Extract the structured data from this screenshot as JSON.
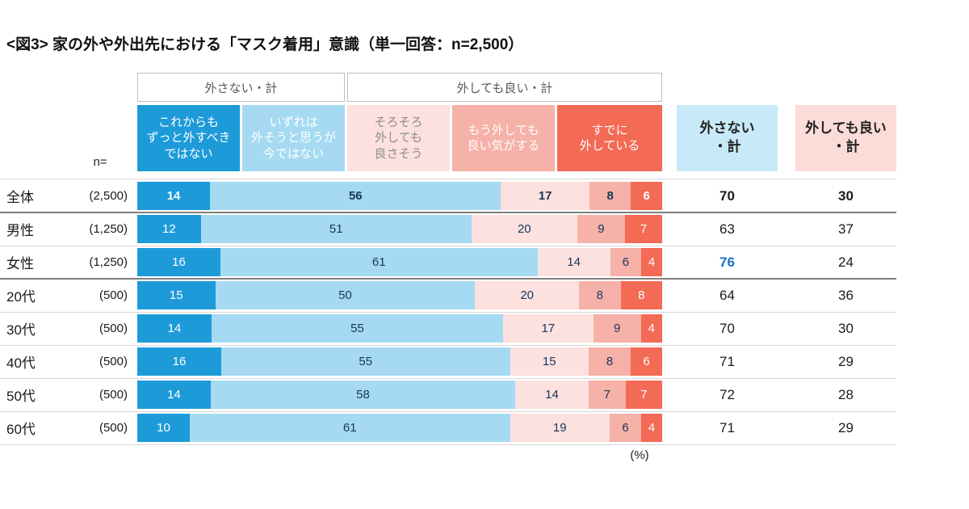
{
  "chart_data": {
    "type": "bar",
    "variant": "horizontal-stacked-100-percent",
    "title": "<図3> 家の外や外出先における「マスク着用」意識（単一回答：n=2,500）",
    "n_label": "n=",
    "unit_label": "(%)",
    "legend_position": "top",
    "x_range": [
      0,
      100
    ],
    "group_headers": [
      "外さない・計",
      "外しても良い・計"
    ],
    "summary_headers": [
      "外さない\n・計",
      "外しても良い\n・計"
    ],
    "summary_header_colors": [
      "#c8e9f8",
      "#fcdcd8"
    ],
    "highlight_color": "#1472c8",
    "series": [
      {
        "label": "これからも\nずっと外すべき\nではない",
        "color": "#1d9bd9",
        "label_text_color": "#ffffff",
        "value_text_color": "#ffffff"
      },
      {
        "label": "いずれは\n外そうと思うが\n今ではない",
        "color": "#a5daf2",
        "label_text_color": "#ffffff",
        "value_text_color": "#17375e"
      },
      {
        "label": "そろそろ\n外しても\n良さそう",
        "color": "#fce1de",
        "label_text_color": "#8c8c8c",
        "value_text_color": "#17375e"
      },
      {
        "label": "もう外しても\n良い気がする",
        "color": "#f6b1a8",
        "label_text_color": "#ffffff",
        "value_text_color": "#17375e"
      },
      {
        "label": "すでに\n外している",
        "color": "#f36a55",
        "label_text_color": "#ffffff",
        "value_text_color": "#ffffff"
      }
    ],
    "rows": [
      {
        "category": "全体",
        "n": "(2,500)",
        "values": [
          14,
          56,
          17,
          8,
          6
        ],
        "keep_total": "70",
        "remove_total": "30",
        "emphasis": true,
        "keep_total_highlight": false,
        "divider_after": "dark"
      },
      {
        "category": "男性",
        "n": "(1,250)",
        "values": [
          12,
          51,
          20,
          9,
          7
        ],
        "keep_total": "63",
        "remove_total": "37",
        "emphasis": false,
        "keep_total_highlight": false,
        "divider_after": "light"
      },
      {
        "category": "女性",
        "n": "(1,250)",
        "values": [
          16,
          61,
          14,
          6,
          4
        ],
        "keep_total": "76",
        "remove_total": "24",
        "emphasis": false,
        "keep_total_highlight": true,
        "divider_after": "dark"
      },
      {
        "category": "20代",
        "n": "(500)",
        "values": [
          15,
          50,
          20,
          8,
          8
        ],
        "keep_total": "64",
        "remove_total": "36",
        "emphasis": false,
        "keep_total_highlight": false,
        "divider_after": "light"
      },
      {
        "category": "30代",
        "n": "(500)",
        "values": [
          14,
          55,
          17,
          9,
          4
        ],
        "keep_total": "70",
        "remove_total": "30",
        "emphasis": false,
        "keep_total_highlight": false,
        "divider_after": "light"
      },
      {
        "category": "40代",
        "n": "(500)",
        "values": [
          16,
          55,
          15,
          8,
          6
        ],
        "keep_total": "71",
        "remove_total": "29",
        "emphasis": false,
        "keep_total_highlight": false,
        "divider_after": "light"
      },
      {
        "category": "50代",
        "n": "(500)",
        "values": [
          14,
          58,
          14,
          7,
          7
        ],
        "keep_total": "72",
        "remove_total": "28",
        "emphasis": false,
        "keep_total_highlight": false,
        "divider_after": "light"
      },
      {
        "category": "60代",
        "n": "(500)",
        "values": [
          10,
          61,
          19,
          6,
          4
        ],
        "keep_total": "71",
        "remove_total": "29",
        "emphasis": false,
        "keep_total_highlight": false,
        "divider_after": "light"
      }
    ]
  }
}
